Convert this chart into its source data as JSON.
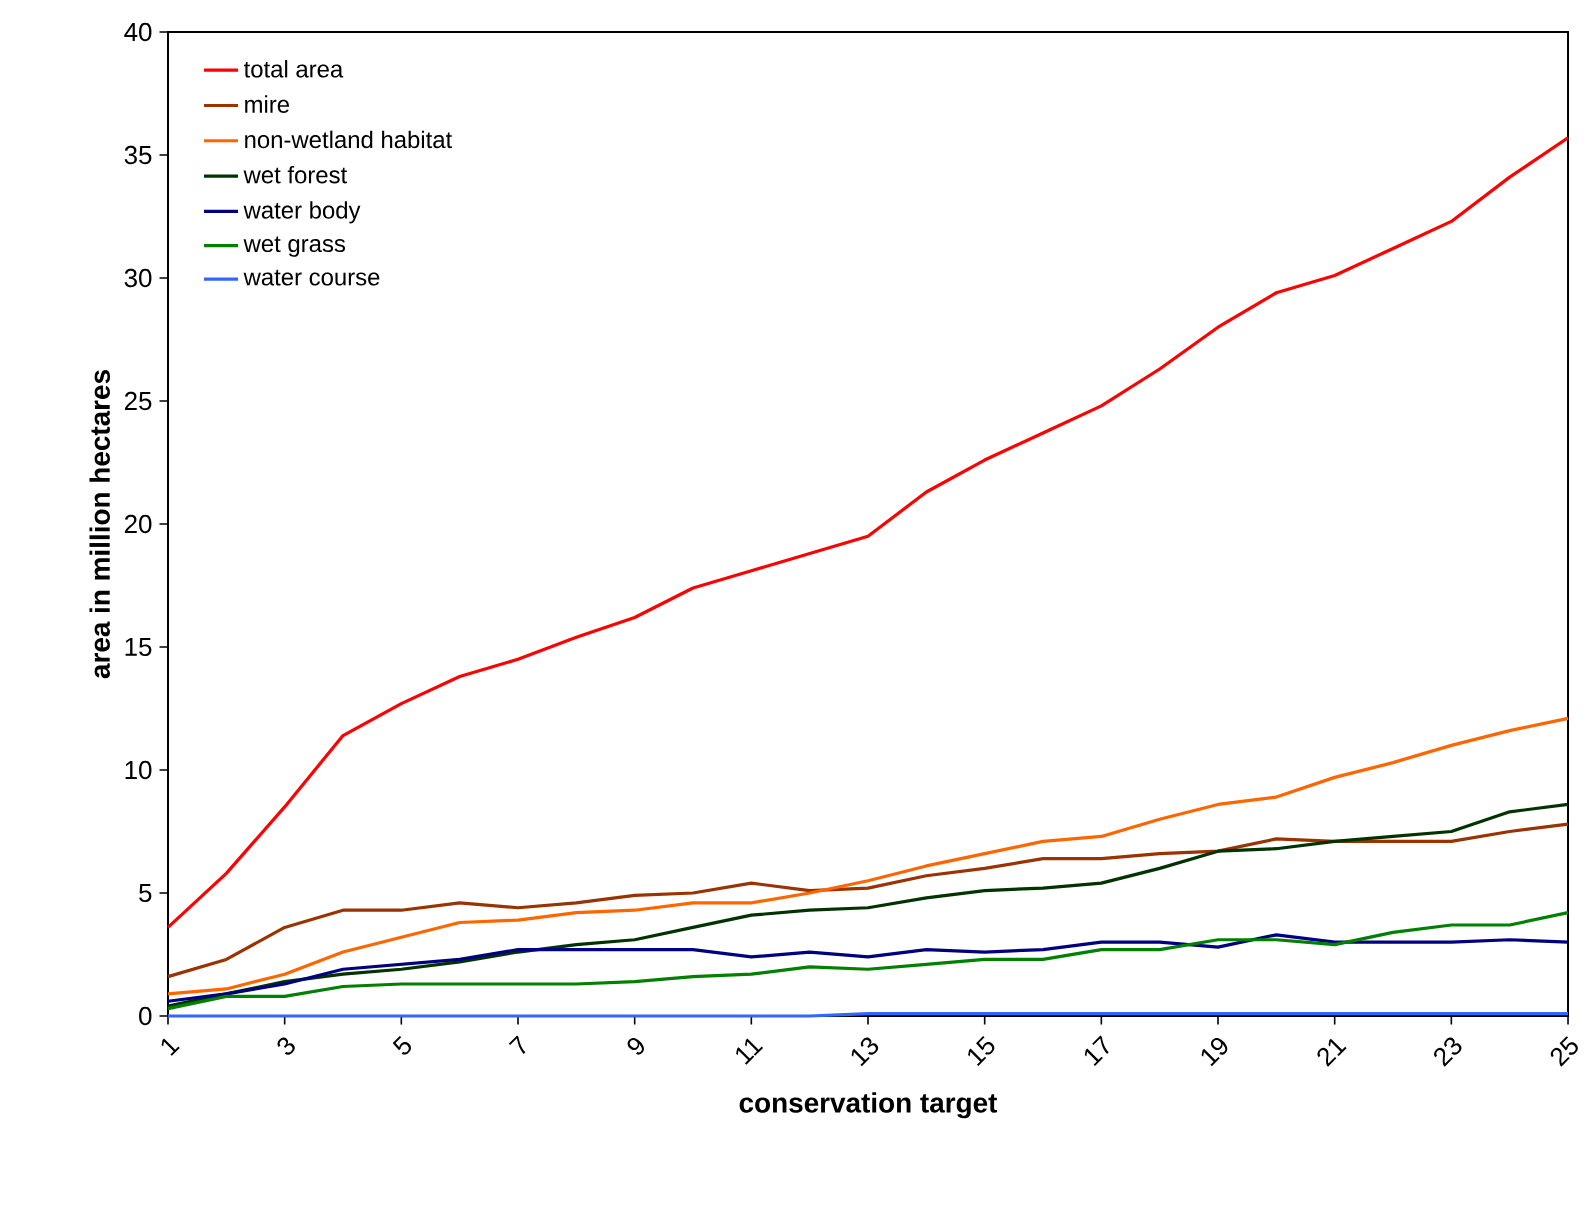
{
  "chart_data": {
    "type": "line",
    "xlabel": "conservation target",
    "ylabel": "area in million hectares",
    "x": [
      1,
      2,
      3,
      4,
      5,
      6,
      7,
      8,
      9,
      10,
      11,
      12,
      13,
      14,
      15,
      16,
      17,
      18,
      19,
      20,
      21,
      22,
      23,
      24,
      25
    ],
    "xlim": [
      1,
      25
    ],
    "xticks": [
      1,
      3,
      5,
      7,
      9,
      11,
      13,
      15,
      17,
      19,
      21,
      23,
      25
    ],
    "ylim": [
      0,
      40
    ],
    "yticks": [
      0,
      5,
      10,
      15,
      20,
      25,
      30,
      35,
      40
    ],
    "grid": false,
    "legend": "top left",
    "marker": "none",
    "line_style": "solid",
    "series": [
      {
        "name": "total area",
        "color": "#ff0000",
        "values": [
          3.6,
          5.8,
          8.5,
          11.4,
          12.7,
          13.8,
          14.5,
          15.4,
          16.2,
          17.4,
          18.1,
          18.8,
          19.5,
          21.3,
          22.6,
          23.7,
          24.8,
          26.3,
          28.0,
          29.4,
          30.1,
          31.2,
          32.3,
          34.1,
          35.7
        ]
      },
      {
        "name": "mire",
        "color": "#993300",
        "values": [
          1.6,
          2.3,
          3.6,
          4.3,
          4.3,
          4.6,
          4.4,
          4.6,
          4.9,
          5.0,
          5.4,
          5.1,
          5.2,
          5.7,
          6.0,
          6.4,
          6.4,
          6.6,
          6.7,
          7.2,
          7.1,
          7.1,
          7.1,
          7.5,
          7.8
        ]
      },
      {
        "name": "non-wetland habitat",
        "color": "#ff6600",
        "values": [
          0.9,
          1.1,
          1.7,
          2.6,
          3.2,
          3.8,
          3.9,
          4.2,
          4.3,
          4.6,
          4.6,
          5.0,
          5.5,
          6.1,
          6.6,
          7.1,
          7.3,
          8.0,
          8.6,
          8.9,
          9.7,
          10.3,
          11.0,
          11.6,
          12.1
        ]
      },
      {
        "name": "wet forest",
        "color": "#003300",
        "values": [
          0.4,
          0.9,
          1.4,
          1.7,
          1.9,
          2.2,
          2.6,
          2.9,
          3.1,
          3.6,
          4.1,
          4.3,
          4.4,
          4.8,
          5.1,
          5.2,
          5.4,
          6.0,
          6.7,
          6.8,
          7.1,
          7.3,
          7.5,
          8.3,
          8.6
        ]
      },
      {
        "name": "water body",
        "color": "#000080",
        "values": [
          0.6,
          0.9,
          1.3,
          1.9,
          2.1,
          2.3,
          2.7,
          2.7,
          2.7,
          2.7,
          2.4,
          2.6,
          2.4,
          2.7,
          2.6,
          2.7,
          3.0,
          3.0,
          2.8,
          3.3,
          3.0,
          3.0,
          3.0,
          3.1,
          3.0
        ]
      },
      {
        "name": "wet grass",
        "color": "#008000",
        "values": [
          0.3,
          0.8,
          0.8,
          1.2,
          1.3,
          1.3,
          1.3,
          1.3,
          1.4,
          1.6,
          1.7,
          2.0,
          1.9,
          2.1,
          2.3,
          2.3,
          2.7,
          2.7,
          3.1,
          3.1,
          2.9,
          3.4,
          3.7,
          3.7,
          4.2
        ]
      },
      {
        "name": "water course",
        "color": "#3366ff",
        "values": [
          0.0,
          0.0,
          0.0,
          0.0,
          0.0,
          0.0,
          0.0,
          0.0,
          0.0,
          0.0,
          0.0,
          0.0,
          0.1,
          0.1,
          0.1,
          0.1,
          0.1,
          0.1,
          0.1,
          0.1,
          0.1,
          0.1,
          0.1,
          0.1,
          0.1
        ]
      }
    ]
  }
}
